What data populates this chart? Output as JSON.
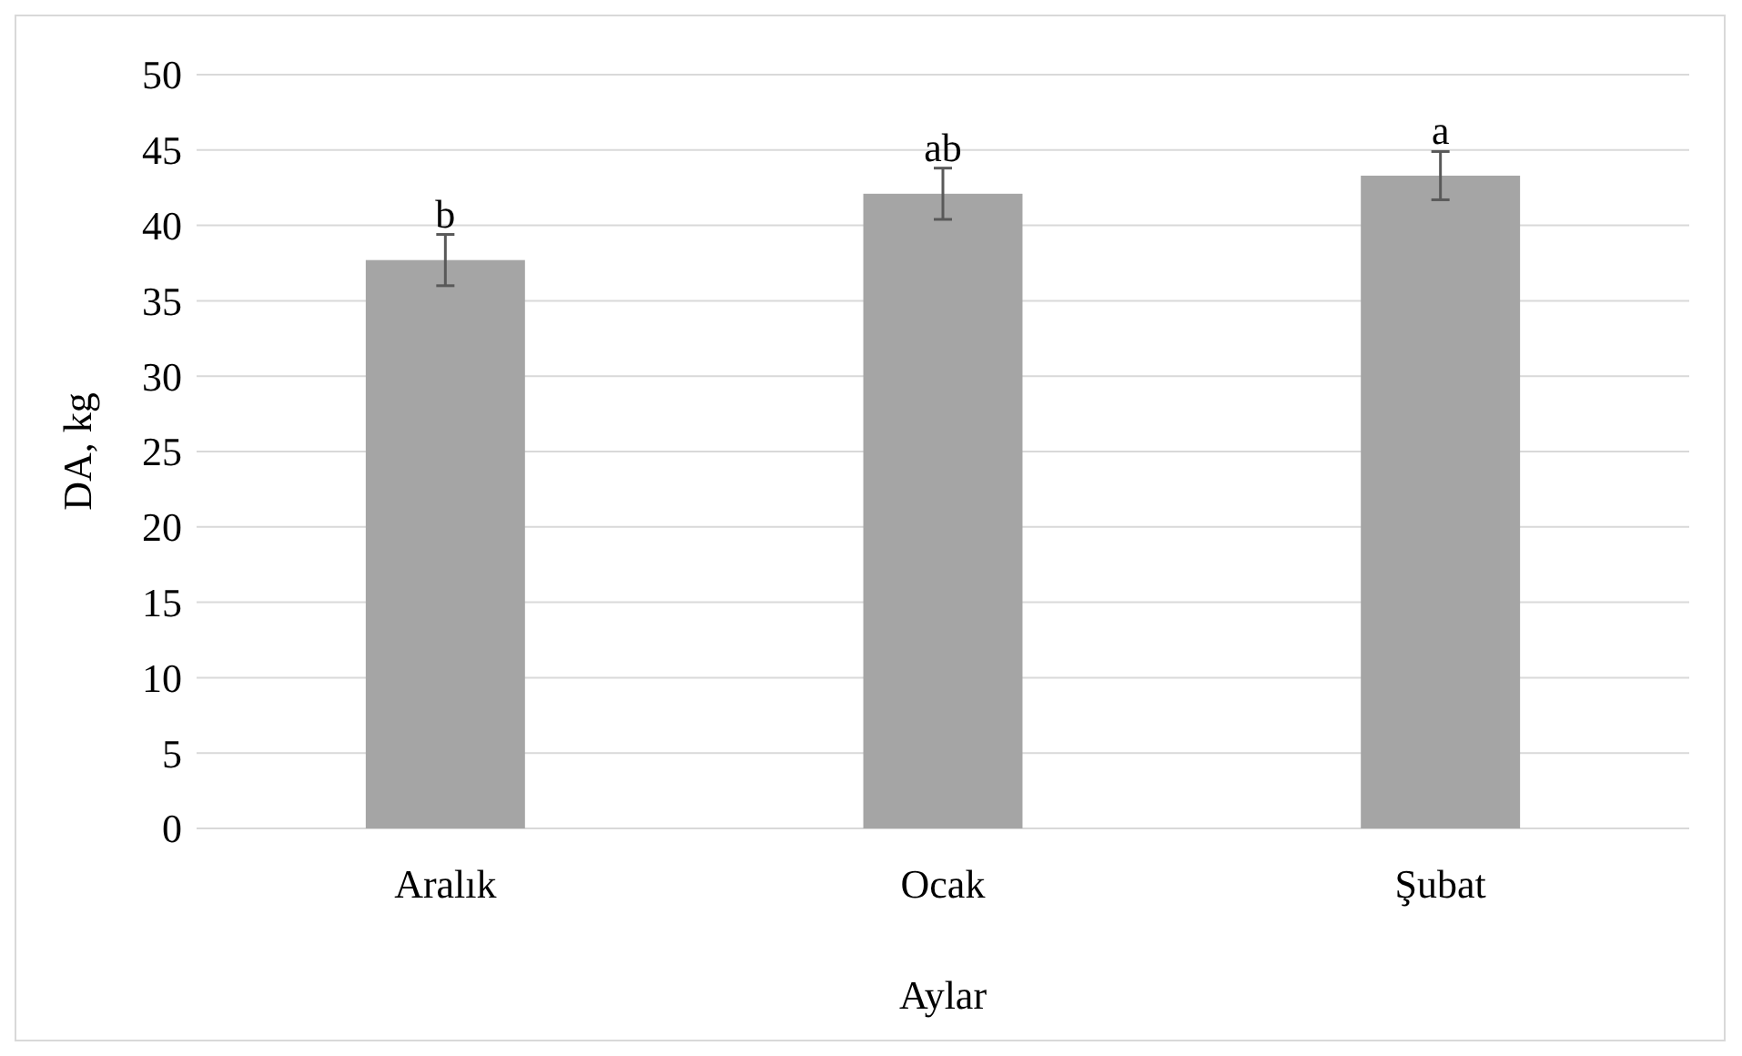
{
  "chart_data": {
    "type": "bar",
    "xlabel": "Aylar",
    "ylabel": "DA, kg",
    "categories": [
      "Aralık",
      "Ocak",
      "Şubat"
    ],
    "values": [
      37.7,
      42.1,
      43.3
    ],
    "errors": [
      1.7,
      1.7,
      1.6
    ],
    "color": "#a5a5a5",
    "ylim": [
      0,
      50
    ],
    "yticks": [
      0,
      5,
      10,
      15,
      20,
      25,
      30,
      35,
      40,
      45,
      50
    ],
    "grid": "y",
    "annotations": [
      {
        "text": "b",
        "x": "Aralık",
        "y": 39.4
      },
      {
        "text": "ab",
        "x": "Ocak",
        "y": 43.8
      },
      {
        "text": "a",
        "x": "Şubat",
        "y": 44.9
      }
    ]
  }
}
